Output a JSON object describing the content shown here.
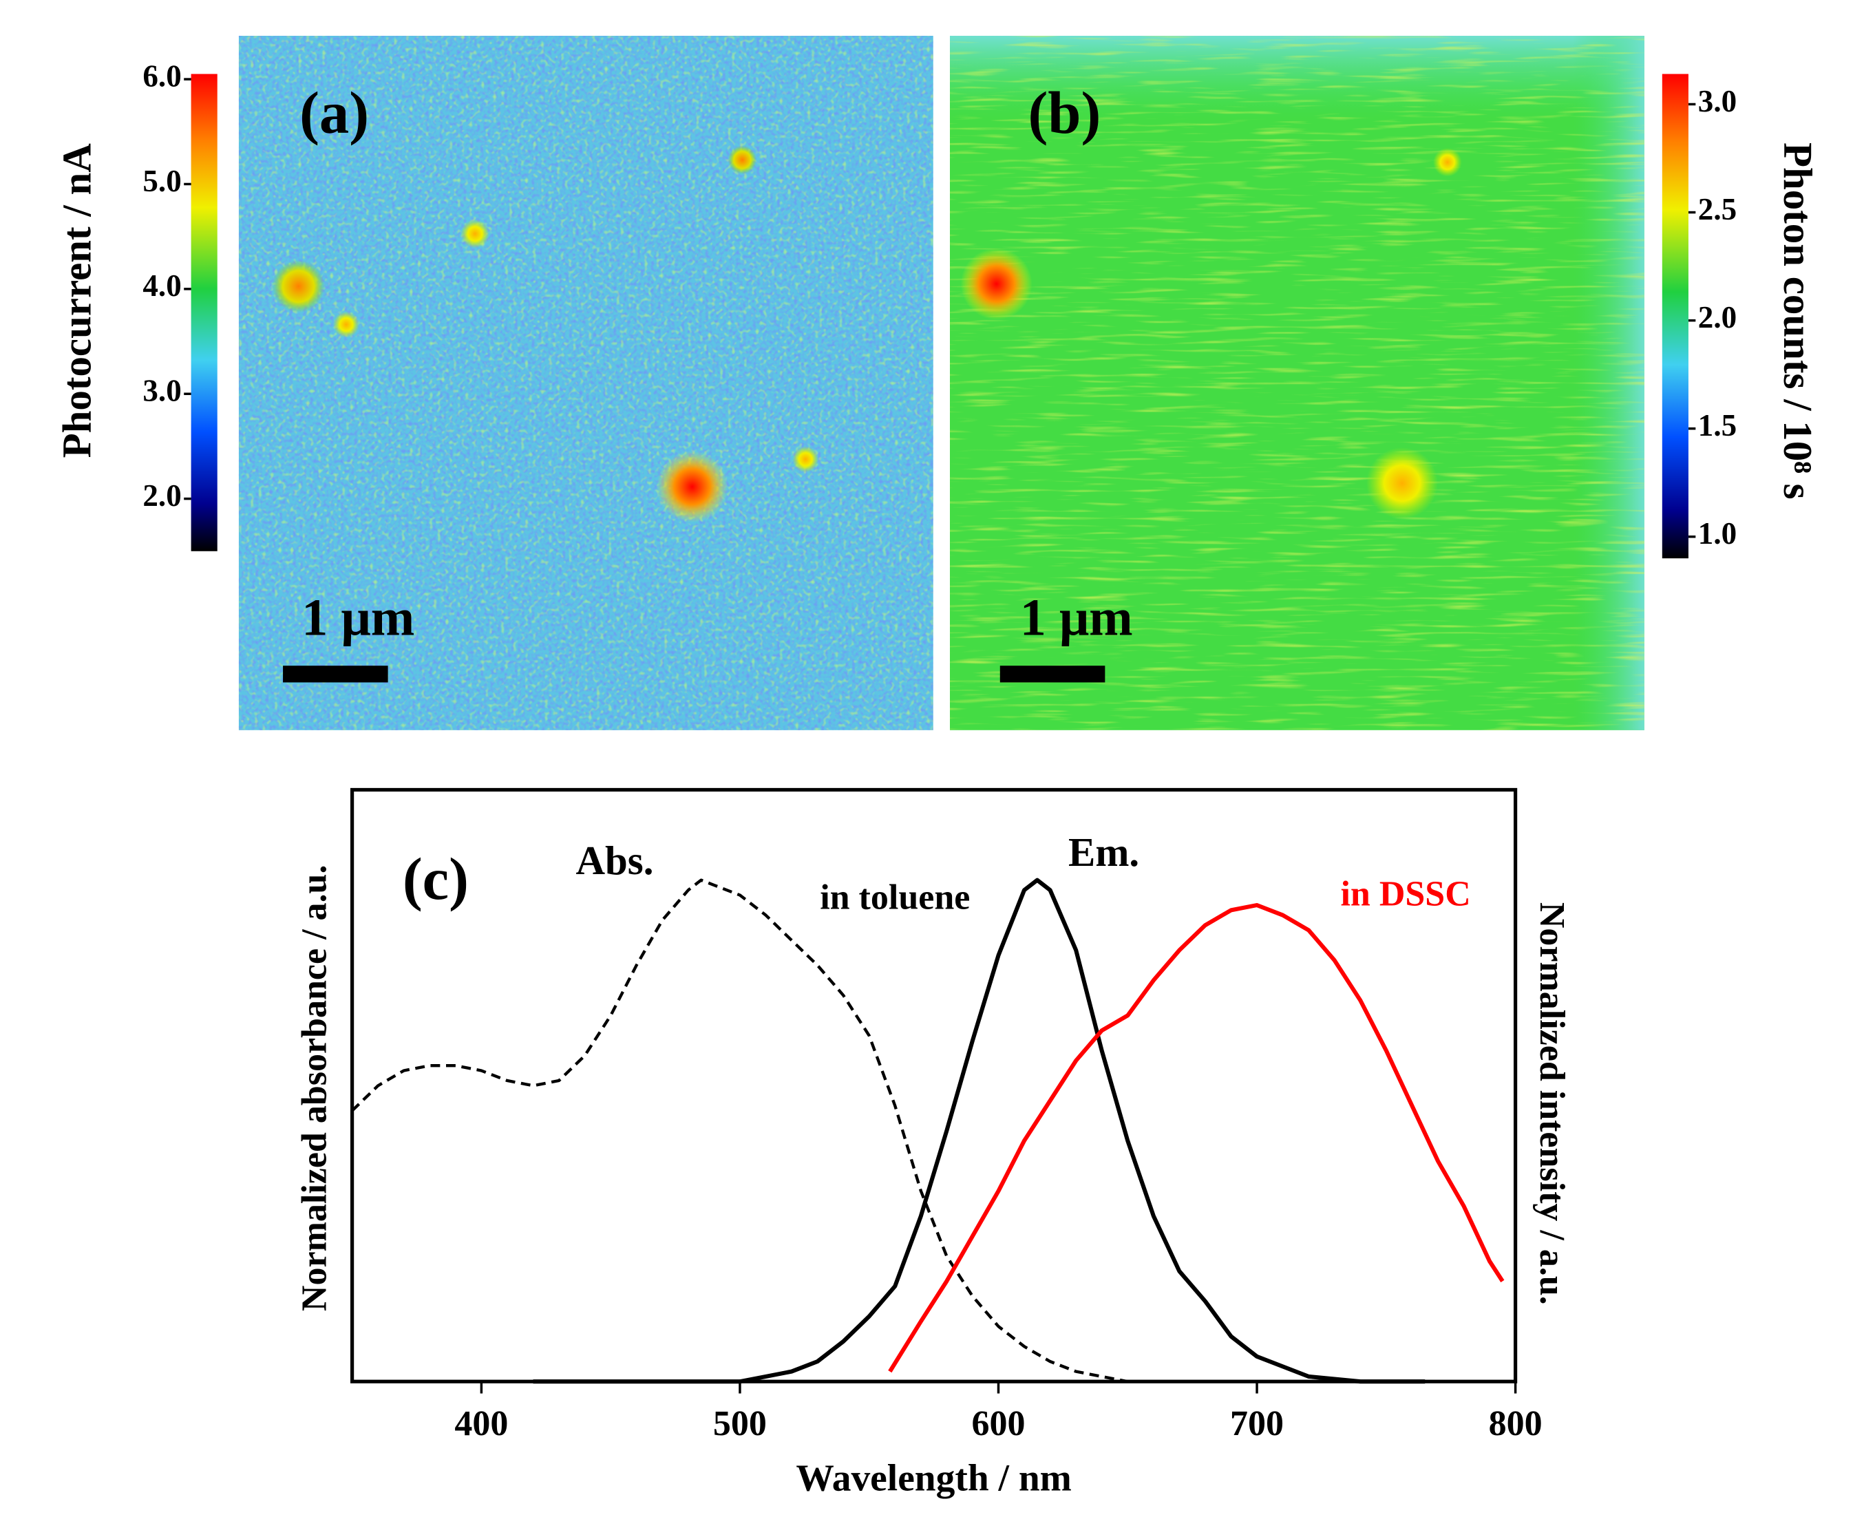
{
  "chart_data": [
    {
      "type": "heatmap",
      "title": "(a)",
      "colorbar_label": "Photocurrent / nA",
      "scale_bar": "1 μm",
      "clim": [
        1.5,
        6.05
      ],
      "cticks": [
        {
          "value": 2,
          "label": "2.0"
        },
        {
          "value": 3,
          "label": "3.0"
        },
        {
          "value": 4,
          "label": "4.0"
        },
        {
          "value": 5,
          "label": "5.0"
        },
        {
          "value": 6,
          "label": "6.0"
        }
      ]
    },
    {
      "type": "heatmap",
      "title": "(b)",
      "colorbar_label": "Photon counts / 10⁸ s",
      "scale_bar": "1 μm",
      "clim": [
        0.9,
        3.14
      ],
      "cticks": [
        {
          "value": 1,
          "label": "1.0"
        },
        {
          "value": 1.5,
          "label": "1.5"
        },
        {
          "value": 2,
          "label": "2.0"
        },
        {
          "value": 2.5,
          "label": "2.5"
        },
        {
          "value": 3,
          "label": "3.0"
        }
      ]
    },
    {
      "type": "line",
      "title": "(c)",
      "x_label": "Wavelength / nm",
      "y_label": "Normalized absorbance / a.u.",
      "y2_label": "Normalized intensity / a.u.",
      "annotations": [
        "Em."
      ],
      "xlim": [
        350,
        800
      ],
      "xticks": [
        400,
        500,
        600,
        700,
        800
      ],
      "ylim": [
        0,
        1.18
      ],
      "series": [
        {
          "name": "Abs.",
          "color": "#000000",
          "line_style": "dashed",
          "x": [
            350,
            360,
            370,
            380,
            390,
            400,
            410,
            420,
            430,
            440,
            450,
            460,
            470,
            480,
            485,
            490,
            500,
            510,
            520,
            530,
            540,
            550,
            560,
            570,
            580,
            590,
            600,
            610,
            620,
            630,
            640,
            650
          ],
          "y": [
            0.54,
            0.59,
            0.62,
            0.63,
            0.63,
            0.62,
            0.6,
            0.59,
            0.6,
            0.65,
            0.73,
            0.83,
            0.92,
            0.98,
            1.0,
            0.99,
            0.97,
            0.93,
            0.88,
            0.83,
            0.77,
            0.69,
            0.55,
            0.38,
            0.25,
            0.17,
            0.11,
            0.07,
            0.04,
            0.02,
            0.01,
            0
          ]
        },
        {
          "name": "in toluene",
          "color": "#000000",
          "line_style": "solid",
          "x": [
            420,
            500,
            510,
            520,
            530,
            540,
            550,
            560,
            570,
            580,
            590,
            600,
            610,
            615,
            620,
            630,
            640,
            650,
            660,
            670,
            680,
            690,
            700,
            720,
            740,
            765
          ],
          "y": [
            0,
            0,
            0.01,
            0.02,
            0.04,
            0.08,
            0.13,
            0.19,
            0.33,
            0.5,
            0.68,
            0.85,
            0.98,
            1.0,
            0.98,
            0.86,
            0.66,
            0.48,
            0.33,
            0.22,
            0.16,
            0.09,
            0.05,
            0.01,
            0,
            0
          ]
        },
        {
          "name": "in DSSC",
          "color": "#ff0000",
          "line_style": "solid",
          "x": [
            558,
            570,
            580,
            590,
            600,
            610,
            620,
            630,
            640,
            650,
            660,
            670,
            680,
            690,
            700,
            710,
            720,
            730,
            740,
            750,
            760,
            770,
            780,
            790,
            795
          ],
          "y": [
            0.02,
            0.12,
            0.2,
            0.29,
            0.38,
            0.48,
            0.56,
            0.64,
            0.7,
            0.73,
            0.8,
            0.86,
            0.91,
            0.94,
            0.95,
            0.93,
            0.9,
            0.84,
            0.76,
            0.66,
            0.55,
            0.44,
            0.35,
            0.24,
            0.2
          ]
        }
      ]
    }
  ]
}
